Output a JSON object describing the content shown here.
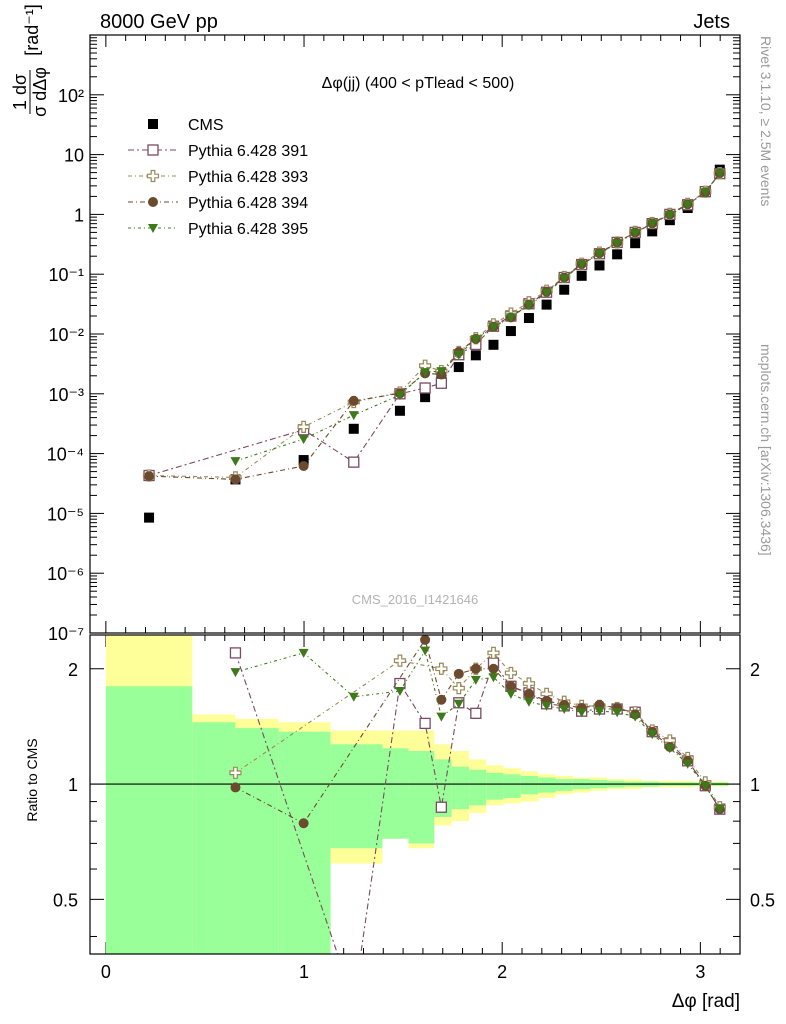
{
  "header": {
    "left": "8000 GeV pp",
    "right": "Jets"
  },
  "side_texts": {
    "rivet": "Rivet 3.1.10, ≥ 2.5M events",
    "mcplots": "mcplots.cern.ch [arXiv:1306.3436]"
  },
  "watermark": "CMS_2016_I1421646",
  "colors": {
    "data": "#000000",
    "p391": "#7b4a63",
    "p393": "#9a8a5a",
    "p394": "#6b4a2e",
    "p395": "#3e7a1a",
    "band_inner": "#99ff99",
    "band_outer": "#ffff99"
  },
  "chart_data": {
    "type": "scatter",
    "title": "Δφ(jj) (400 < pTlead <  500)",
    "xlabel": "Δφ [rad]",
    "ylabel_main": "1/σ dσ/dΔφ [rad⁻¹]",
    "ylabel_ratio": "Ratio to CMS",
    "x_ticks": [
      "0",
      "1",
      "2",
      "3"
    ],
    "y_ticks_main": [
      "10⁻⁷",
      "10⁻⁶",
      "10⁻⁵",
      "10⁻⁴",
      "10⁻³",
      "10⁻²",
      "10⁻¹",
      "1",
      "10",
      "10²"
    ],
    "y_ticks_ratio": [
      "0.5",
      "1",
      "2"
    ],
    "xlim": [
      -0.08,
      3.2
    ],
    "ylim_main": [
      1e-07,
      1000
    ],
    "ylim_ratio": [
      0.36,
      2.45
    ],
    "y_scale": "log",
    "legend_position": "top-left",
    "x": [
      0.218,
      0.654,
      0.998,
      1.251,
      1.484,
      1.611,
      1.693,
      1.781,
      1.867,
      1.956,
      2.044,
      2.135,
      2.224,
      2.313,
      2.401,
      2.491,
      2.58,
      2.671,
      2.757,
      2.846,
      2.936,
      3.025,
      3.098
    ],
    "series": [
      {
        "name": "CMS",
        "marker": "square-filled",
        "color_key": "data",
        "values": [
          8.5e-06,
          3.7e-05,
          7.8e-05,
          0.00026,
          0.00052,
          0.00088,
          0.00175,
          0.0028,
          0.0044,
          0.0066,
          0.0112,
          0.0185,
          0.031,
          0.055,
          0.094,
          0.14,
          0.215,
          0.33,
          0.52,
          0.8,
          1.28,
          2.35,
          5.6
        ]
      },
      {
        "name": "Pythia 6.428 391",
        "marker": "square-open",
        "color_key": "p391",
        "values": [
          4.3e-05,
          null,
          0.00025,
          7.2e-05,
          0.001,
          0.00125,
          0.0015,
          0.0045,
          0.0067,
          0.0135,
          0.02,
          0.032,
          0.05,
          0.088,
          0.145,
          0.22,
          0.34,
          0.5,
          0.7,
          1.0,
          1.45,
          2.4,
          4.8
        ]
      },
      {
        "name": "Pythia 6.428 393",
        "marker": "cross-open",
        "color_key": "p393",
        "values": [
          4.3e-05,
          4e-05,
          0.00028,
          0.00073,
          0.00105,
          0.00295,
          0.0024,
          0.005,
          0.0085,
          0.0145,
          0.022,
          0.034,
          0.053,
          0.09,
          0.15,
          0.23,
          0.34,
          0.51,
          0.72,
          1.02,
          1.5,
          2.4,
          4.9
        ]
      },
      {
        "name": "Pythia 6.428 394",
        "marker": "circle-filled",
        "color_key": "p394",
        "values": [
          4.2e-05,
          3.7e-05,
          6.2e-05,
          0.00076,
          0.00102,
          0.0022,
          0.0021,
          0.005,
          0.0083,
          0.0132,
          0.019,
          0.031,
          0.051,
          0.088,
          0.148,
          0.225,
          0.34,
          0.5,
          0.71,
          1.0,
          1.48,
          2.35,
          4.9
        ]
      },
      {
        "name": "Pythia 6.428 395",
        "marker": "triangle-down-filled",
        "color_key": "p395",
        "values": [
          null,
          7.5e-05,
          0.000175,
          0.00044,
          0.00095,
          0.0023,
          0.0024,
          0.0045,
          0.0082,
          0.013,
          0.019,
          0.03,
          0.049,
          0.085,
          0.145,
          0.22,
          0.33,
          0.49,
          0.7,
          0.98,
          1.45,
          2.35,
          4.8
        ]
      }
    ],
    "ratio_series": [
      {
        "name": "Pythia 6.428 391",
        "values": [
          null,
          2.2,
          null,
          0.27,
          1.83,
          1.44,
          0.87,
          1.63,
          1.53,
          2.07,
          1.8,
          1.73,
          1.62,
          1.6,
          1.55,
          1.57,
          1.57,
          1.54,
          1.37,
          1.28,
          1.15,
          0.99,
          0.86
        ]
      },
      {
        "name": "Pythia 6.428 393",
        "values": [
          null,
          1.07,
          null,
          null,
          2.1,
          null,
          2.0,
          1.78,
          2.0,
          2.2,
          1.95,
          1.83,
          1.72,
          1.64,
          1.6,
          1.6,
          1.58,
          1.54,
          1.38,
          1.3,
          1.17,
          1.01,
          0.87
        ]
      },
      {
        "name": "Pythia 6.428 394",
        "values": [
          null,
          0.98,
          0.79,
          null,
          null,
          2.38,
          1.66,
          1.94,
          2.0,
          2.0,
          1.8,
          1.72,
          1.65,
          1.61,
          1.58,
          1.61,
          1.58,
          1.52,
          1.37,
          1.25,
          1.15,
          0.99,
          0.86
        ]
      },
      {
        "name": "Pythia 6.428 395",
        "values": [
          null,
          1.96,
          2.2,
          1.69,
          1.75,
          2.23,
          1.5,
          1.62,
          1.87,
          1.9,
          1.72,
          1.64,
          1.6,
          1.57,
          1.54,
          1.55,
          1.54,
          1.5,
          1.35,
          1.24,
          1.13,
          0.99,
          0.86
        ]
      }
    ],
    "uncertainty_bands": {
      "edges": [
        0.0,
        0.436,
        0.654,
        0.872,
        1.134,
        1.396,
        1.527,
        1.658,
        1.745,
        1.833,
        1.92,
        2.007,
        2.094,
        2.182,
        2.269,
        2.356,
        2.443,
        2.531,
        2.618,
        2.705,
        2.793,
        2.88,
        2.967,
        3.054,
        3.1416
      ],
      "inner": [
        [
          0.3,
          1.8
        ],
        [
          0.3,
          1.45
        ],
        [
          0.3,
          1.4
        ],
        [
          0.3,
          1.37
        ],
        [
          0.68,
          1.27
        ],
        [
          0.72,
          1.24
        ],
        [
          0.7,
          1.22
        ],
        [
          0.82,
          1.16
        ],
        [
          0.86,
          1.11
        ],
        [
          0.88,
          1.09
        ],
        [
          0.91,
          1.07
        ],
        [
          0.92,
          1.06
        ],
        [
          0.94,
          1.05
        ],
        [
          0.95,
          1.04
        ],
        [
          0.96,
          1.03
        ],
        [
          0.97,
          1.03
        ],
        [
          0.975,
          1.025
        ],
        [
          0.98,
          1.02
        ],
        [
          0.985,
          1.015
        ],
        [
          0.985,
          1.015
        ],
        [
          0.99,
          1.01
        ],
        [
          0.99,
          1.01
        ],
        [
          0.99,
          1.01
        ],
        [
          0.99,
          1.01
        ]
      ],
      "outer": [
        [
          0.3,
          2.5
        ],
        [
          0.3,
          1.52
        ],
        [
          0.3,
          1.48
        ],
        [
          0.3,
          1.45
        ],
        [
          0.62,
          1.38
        ],
        [
          0.72,
          1.38
        ],
        [
          0.68,
          1.38
        ],
        [
          0.78,
          1.27
        ],
        [
          0.8,
          1.22
        ],
        [
          0.84,
          1.16
        ],
        [
          0.88,
          1.12
        ],
        [
          0.89,
          1.1
        ],
        [
          0.9,
          1.08
        ],
        [
          0.92,
          1.06
        ],
        [
          0.94,
          1.05
        ],
        [
          0.95,
          1.04
        ],
        [
          0.96,
          1.04
        ],
        [
          0.97,
          1.03
        ],
        [
          0.97,
          1.03
        ],
        [
          0.98,
          1.02
        ],
        [
          0.98,
          1.02
        ],
        [
          0.98,
          1.02
        ],
        [
          0.985,
          1.015
        ],
        [
          0.985,
          1.015
        ]
      ]
    }
  }
}
